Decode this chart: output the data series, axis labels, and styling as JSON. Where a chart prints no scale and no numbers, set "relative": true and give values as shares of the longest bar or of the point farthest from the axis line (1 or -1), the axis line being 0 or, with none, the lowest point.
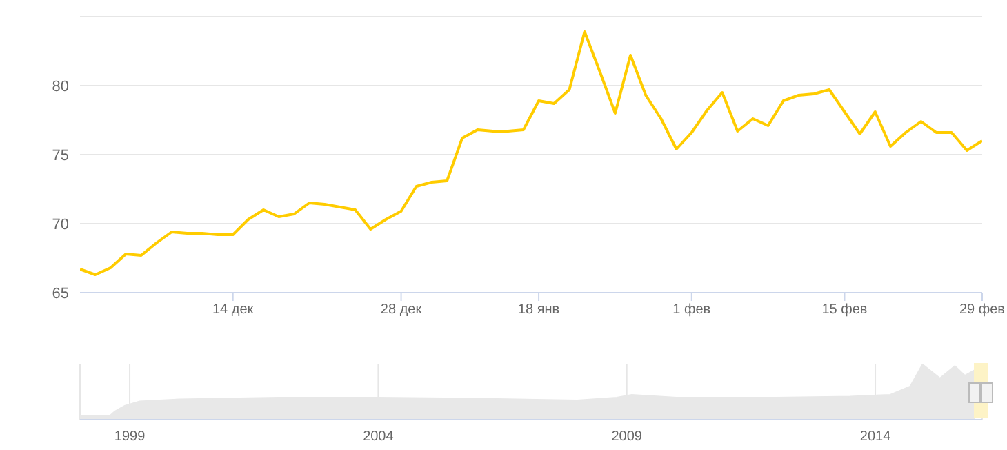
{
  "chart_data": [
    {
      "type": "line",
      "categories": [
        null,
        null,
        null,
        null,
        null,
        null,
        null,
        null,
        null,
        null,
        "14 дек",
        null,
        null,
        null,
        null,
        null,
        null,
        null,
        null,
        null,
        null,
        "28 дек",
        null,
        null,
        null,
        null,
        null,
        null,
        null,
        null,
        "18 янв",
        null,
        null,
        null,
        null,
        null,
        null,
        null,
        null,
        null,
        "1 фев",
        null,
        null,
        null,
        null,
        null,
        null,
        null,
        null,
        null,
        "15 фев",
        null,
        null,
        null,
        null,
        null,
        null,
        null,
        null,
        "29 фев"
      ],
      "series": [
        {
          "color": "#ffcc00",
          "values": [
            66.7,
            66.3,
            66.8,
            67.8,
            67.7,
            68.6,
            69.4,
            69.3,
            69.3,
            69.2,
            69.2,
            70.3,
            71.0,
            70.5,
            70.7,
            71.5,
            71.4,
            71.2,
            71.0,
            69.6,
            70.3,
            70.9,
            72.7,
            73.0,
            73.1,
            76.2,
            76.8,
            76.7,
            76.7,
            76.8,
            78.9,
            78.7,
            79.7,
            83.9,
            81.0,
            78.0,
            82.2,
            79.3,
            77.6,
            75.4,
            76.6,
            78.2,
            79.5,
            76.7,
            77.6,
            77.1,
            78.9,
            79.3,
            79.4,
            79.7,
            78.1,
            76.5,
            78.1,
            75.6,
            76.6,
            77.4,
            76.6,
            76.6,
            75.3,
            76.0
          ]
        }
      ],
      "ylim": [
        65,
        85
      ],
      "yticks": [
        65,
        70,
        75,
        80,
        {
          "value": 85,
          "label": null
        }
      ],
      "grid": "y",
      "legend": false,
      "marker": "none",
      "line_style": "solid"
    },
    {
      "type": "area",
      "relative": true,
      "x": [
        1998.0,
        1998.6,
        1998.7,
        1998.9,
        1999.2,
        2000,
        2002,
        2004,
        2006,
        2008,
        2008.8,
        2009.1,
        2010,
        2012,
        2013.5,
        2014.3,
        2014.7,
        2014.95,
        2015.3,
        2015.6,
        2015.8,
        2016.0
      ],
      "series": [
        {
          "color": "#e8e8e8",
          "values": [
            0.07,
            0.07,
            0.15,
            0.25,
            0.33,
            0.37,
            0.4,
            0.4,
            0.38,
            0.35,
            0.4,
            0.45,
            0.4,
            0.4,
            0.42,
            0.45,
            0.6,
            1,
            0.75,
            0.97,
            0.8,
            0.9
          ]
        }
      ],
      "xlim": [
        1998.0,
        2016.15
      ],
      "xticks": [
        1999,
        2004,
        2009,
        2014
      ],
      "grid": "x",
      "legend": false
    }
  ]
}
